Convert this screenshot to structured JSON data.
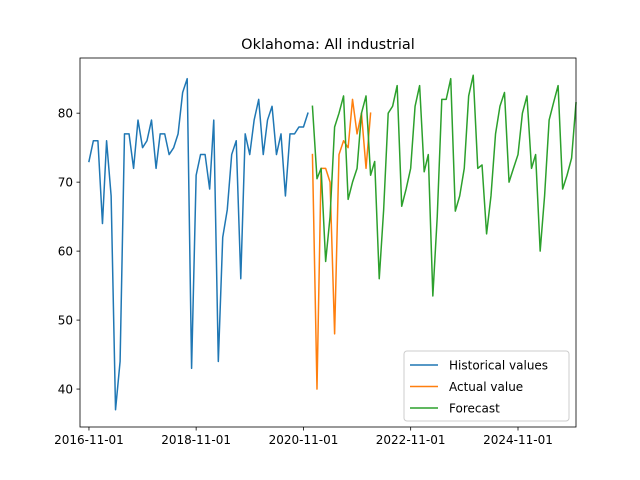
{
  "chart_data": {
    "type": "line",
    "title": "Oklahoma: All industrial",
    "xlabel": "",
    "ylabel": "",
    "x_ticks": [
      "2016-11-01",
      "2018-11-01",
      "2020-11-01",
      "2022-11-01",
      "2024-11-01"
    ],
    "y_ticks": [
      40,
      50,
      60,
      70,
      80
    ],
    "xlim": [
      "2016-09-01",
      "2025-12-01"
    ],
    "ylim": [
      34.5,
      88.0
    ],
    "grid": false,
    "legend_position": "lower-right",
    "series": [
      {
        "name": "Historical values",
        "color": "#1f77b4",
        "points": [
          [
            "2016-11-01",
            73
          ],
          [
            "2016-12-01",
            76
          ],
          [
            "2017-01-01",
            76
          ],
          [
            "2017-02-01",
            64
          ],
          [
            "2017-03-01",
            76
          ],
          [
            "2017-04-01",
            68
          ],
          [
            "2017-05-01",
            37
          ],
          [
            "2017-06-01",
            44
          ],
          [
            "2017-07-01",
            77
          ],
          [
            "2017-08-01",
            77
          ],
          [
            "2017-09-01",
            72
          ],
          [
            "2017-10-01",
            79
          ],
          [
            "2017-11-01",
            75
          ],
          [
            "2017-12-01",
            76
          ],
          [
            "2018-01-01",
            79
          ],
          [
            "2018-02-01",
            72
          ],
          [
            "2018-03-01",
            77
          ],
          [
            "2018-04-01",
            77
          ],
          [
            "2018-05-01",
            74
          ],
          [
            "2018-06-01",
            75
          ],
          [
            "2018-07-01",
            77
          ],
          [
            "2018-08-01",
            83
          ],
          [
            "2018-09-01",
            85
          ],
          [
            "2018-10-01",
            43
          ],
          [
            "2018-11-01",
            71
          ],
          [
            "2018-12-01",
            74
          ],
          [
            "2019-01-01",
            74
          ],
          [
            "2019-02-01",
            69
          ],
          [
            "2019-03-01",
            79
          ],
          [
            "2019-04-01",
            44
          ],
          [
            "2019-05-01",
            62
          ],
          [
            "2019-06-01",
            66
          ],
          [
            "2019-07-01",
            74
          ],
          [
            "2019-08-01",
            76
          ],
          [
            "2019-09-01",
            56
          ],
          [
            "2019-10-01",
            77
          ],
          [
            "2019-11-01",
            74
          ],
          [
            "2019-12-01",
            79
          ],
          [
            "2020-01-01",
            82
          ],
          [
            "2020-02-01",
            74
          ],
          [
            "2020-03-01",
            79
          ],
          [
            "2020-04-01",
            81
          ],
          [
            "2020-05-01",
            74
          ],
          [
            "2020-06-01",
            77
          ],
          [
            "2020-07-01",
            68
          ],
          [
            "2020-08-01",
            77
          ],
          [
            "2020-09-01",
            77
          ],
          [
            "2020-10-01",
            78
          ],
          [
            "2020-11-01",
            78
          ],
          [
            "2020-12-01",
            80
          ]
        ]
      },
      {
        "name": "Actual value",
        "color": "#ff7f0e",
        "points": [
          [
            "2021-01-01",
            74
          ],
          [
            "2021-02-01",
            40
          ],
          [
            "2021-03-01",
            72
          ],
          [
            "2021-04-01",
            72
          ],
          [
            "2021-05-01",
            70
          ],
          [
            "2021-06-01",
            48
          ],
          [
            "2021-07-01",
            74
          ],
          [
            "2021-08-01",
            76
          ],
          [
            "2021-09-01",
            75
          ],
          [
            "2021-10-01",
            82
          ],
          [
            "2021-11-01",
            77
          ],
          [
            "2021-12-01",
            80
          ],
          [
            "2022-01-01",
            72
          ],
          [
            "2022-02-01",
            80
          ]
        ]
      },
      {
        "name": "Forecast",
        "color": "#2ca02c",
        "points": [
          [
            "2021-01-01",
            81
          ],
          [
            "2021-02-01",
            70.5
          ],
          [
            "2021-03-01",
            72
          ],
          [
            "2021-04-01",
            58.5
          ],
          [
            "2021-05-01",
            65
          ],
          [
            "2021-06-01",
            78
          ],
          [
            "2021-07-01",
            80
          ],
          [
            "2021-08-01",
            82.5
          ],
          [
            "2021-09-01",
            67.5
          ],
          [
            "2021-10-01",
            70
          ],
          [
            "2021-11-01",
            72
          ],
          [
            "2021-12-01",
            80
          ],
          [
            "2022-01-01",
            82.5
          ],
          [
            "2022-02-01",
            71
          ],
          [
            "2022-03-01",
            73
          ],
          [
            "2022-04-01",
            56
          ],
          [
            "2022-05-01",
            66
          ],
          [
            "2022-06-01",
            80
          ],
          [
            "2022-07-01",
            81
          ],
          [
            "2022-08-01",
            84
          ],
          [
            "2022-09-01",
            66.5
          ],
          [
            "2022-10-01",
            69
          ],
          [
            "2022-11-01",
            72
          ],
          [
            "2022-12-01",
            81
          ],
          [
            "2023-01-01",
            84
          ],
          [
            "2023-02-01",
            71.5
          ],
          [
            "2023-03-01",
            74
          ],
          [
            "2023-04-01",
            53.5
          ],
          [
            "2023-05-01",
            65
          ],
          [
            "2023-06-01",
            82
          ],
          [
            "2023-07-01",
            82
          ],
          [
            "2023-08-01",
            85
          ],
          [
            "2023-09-01",
            65.8
          ],
          [
            "2023-10-01",
            68
          ],
          [
            "2023-11-01",
            72
          ],
          [
            "2023-12-01",
            82.5
          ],
          [
            "2024-01-01",
            85.5
          ],
          [
            "2024-02-01",
            72
          ],
          [
            "2024-03-01",
            72.5
          ],
          [
            "2024-04-01",
            62.5
          ],
          [
            "2024-05-01",
            68
          ],
          [
            "2024-06-01",
            77
          ],
          [
            "2024-07-01",
            81
          ],
          [
            "2024-08-01",
            83
          ],
          [
            "2024-09-01",
            70
          ],
          [
            "2024-10-01",
            72
          ],
          [
            "2024-11-01",
            74
          ],
          [
            "2024-12-01",
            80
          ],
          [
            "2025-01-01",
            82.5
          ],
          [
            "2025-02-01",
            72
          ],
          [
            "2025-03-01",
            74
          ],
          [
            "2025-04-01",
            60
          ],
          [
            "2025-05-01",
            68
          ],
          [
            "2025-06-01",
            79
          ],
          [
            "2025-07-01",
            81.5
          ],
          [
            "2025-08-01",
            84
          ],
          [
            "2025-09-01",
            69
          ],
          [
            "2025-10-01",
            71
          ],
          [
            "2025-11-01",
            73.5
          ],
          [
            "2025-12-01",
            81.5
          ]
        ]
      }
    ]
  }
}
